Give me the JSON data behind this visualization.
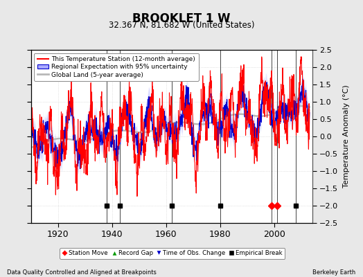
{
  "title": "BROOKLET 1 W",
  "subtitle": "32.367 N, 81.682 W (United States)",
  "ylabel": "Temperature Anomaly (°C)",
  "xlabel_left": "Data Quality Controlled and Aligned at Breakpoints",
  "xlabel_right": "Berkeley Earth",
  "year_start": 1910,
  "year_end": 2014,
  "ylim": [
    -2.5,
    2.5
  ],
  "yticks": [
    -2.5,
    -2,
    -1.5,
    -1,
    -0.5,
    0,
    0.5,
    1,
    1.5,
    2,
    2.5
  ],
  "xticks": [
    1920,
    1940,
    1960,
    1980,
    2000
  ],
  "bg_color": "#e8e8e8",
  "plot_bg_color": "#ffffff",
  "grid_color": "#cccccc",
  "station_line_color": "#ff0000",
  "regional_line_color": "#0000cc",
  "regional_fill_color": "#aaaaff",
  "global_line_color": "#b8b8b8",
  "empirical_breaks": [
    1938,
    1943,
    1962,
    1980,
    2008
  ],
  "station_moves": [
    1999,
    2001
  ],
  "obs_changes": [],
  "record_gaps": [],
  "legend_entries": [
    "This Temperature Station (12-month average)",
    "Regional Expectation with 95% uncertainty",
    "Global Land (5-year average)"
  ],
  "bottom_legend": [
    "Station Move",
    "Record Gap",
    "Time of Obs. Change",
    "Empirical Break"
  ]
}
